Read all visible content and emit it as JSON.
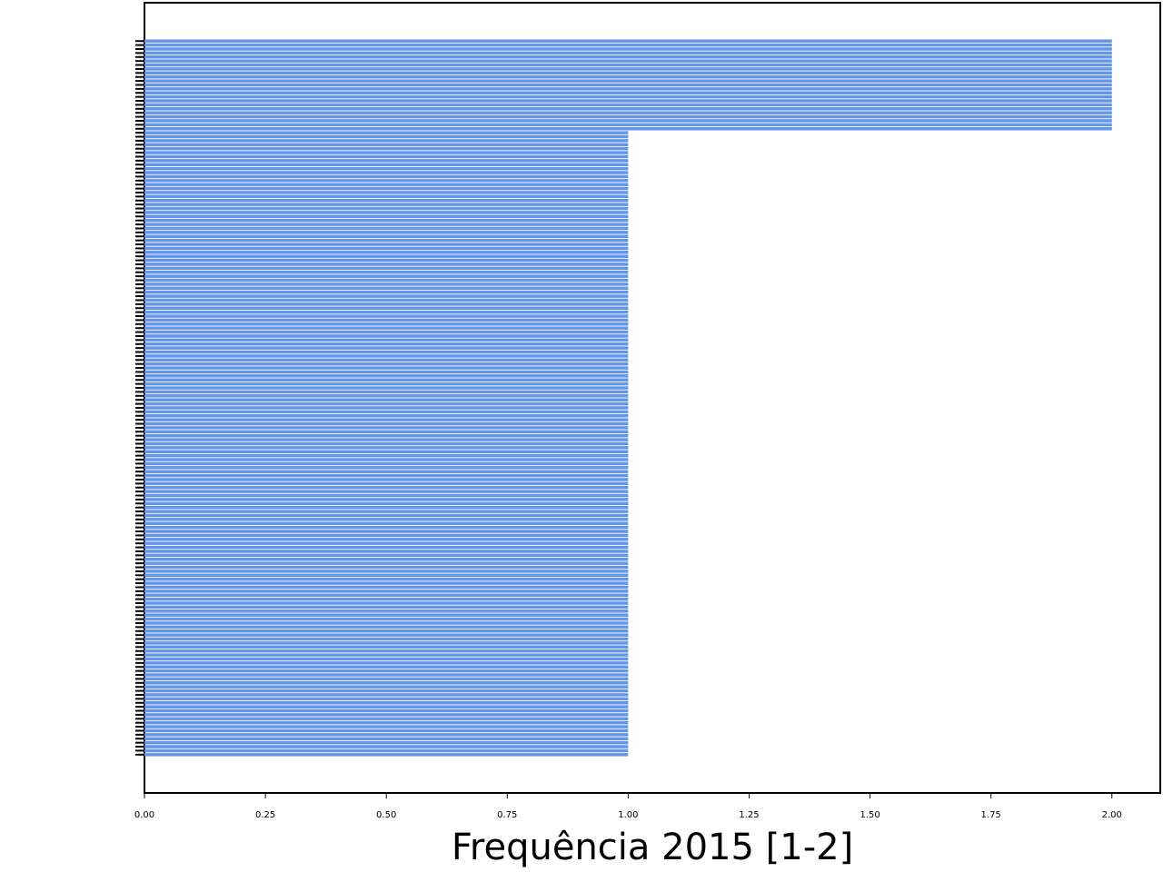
{
  "chart_data": {
    "type": "barh",
    "xlabel": "Frequência 2015 [1-2]",
    "color": "#6495ed",
    "xlim": [
      0,
      2.1
    ],
    "xticks": [
      {
        "value": 0,
        "label": "0.00"
      },
      {
        "value": 0.25,
        "label": "0.25"
      },
      {
        "value": 0.5,
        "label": "0.50"
      },
      {
        "value": 0.75,
        "label": "0.75"
      },
      {
        "value": 1,
        "label": "1.00"
      },
      {
        "value": 1.25,
        "label": "1.25"
      },
      {
        "value": 1.5,
        "label": "1.50"
      },
      {
        "value": 1.75,
        "label": "1.75"
      },
      {
        "value": 2,
        "label": "2.00"
      }
    ],
    "categories": [
      null,
      null,
      null,
      null,
      null,
      null,
      null,
      null,
      null,
      null,
      null,
      null,
      null,
      null,
      null,
      null,
      null,
      null,
      null,
      null,
      null,
      null,
      null,
      null,
      null,
      null,
      null,
      null,
      null,
      null,
      null,
      null,
      null,
      null,
      null,
      null,
      null,
      null,
      null,
      null,
      null,
      null,
      null,
      null,
      null,
      null,
      null,
      null,
      null,
      null,
      null,
      null,
      null,
      null,
      null,
      null,
      null,
      null,
      null,
      null,
      null,
      null,
      null,
      null,
      null,
      null,
      null,
      null,
      null,
      null,
      null,
      null,
      null,
      null,
      null,
      null,
      null,
      null,
      null,
      null,
      null,
      null,
      null,
      null,
      null,
      null,
      null,
      null,
      null,
      null,
      null,
      null,
      null,
      null,
      null,
      null,
      null,
      null,
      null,
      null,
      null,
      null,
      null,
      null,
      null,
      null,
      null,
      null,
      null,
      null,
      null,
      null,
      null,
      null,
      null,
      null,
      null,
      null,
      null,
      null,
      null,
      null,
      null,
      null,
      null,
      null,
      null,
      null,
      null,
      null,
      null,
      null,
      null,
      null,
      null,
      null,
      null,
      null,
      null,
      null,
      null,
      null,
      null,
      null,
      null,
      null,
      null,
      null,
      null,
      null,
      null,
      null,
      null,
      null,
      null,
      null,
      null,
      null,
      null,
      null,
      null,
      null,
      null,
      null,
      null,
      null,
      null,
      null,
      null,
      null,
      null,
      null,
      null,
      null,
      null,
      null,
      null,
      null,
      null,
      null
    ],
    "values": [
      2,
      2,
      2,
      2,
      2,
      2,
      2,
      2,
      2,
      2,
      2,
      2,
      2,
      2,
      2,
      2,
      2,
      2,
      2,
      2,
      2,
      2,
      2,
      1,
      1,
      1,
      1,
      1,
      1,
      1,
      1,
      1,
      1,
      1,
      1,
      1,
      1,
      1,
      1,
      1,
      1,
      1,
      1,
      1,
      1,
      1,
      1,
      1,
      1,
      1,
      1,
      1,
      1,
      1,
      1,
      1,
      1,
      1,
      1,
      1,
      1,
      1,
      1,
      1,
      1,
      1,
      1,
      1,
      1,
      1,
      1,
      1,
      1,
      1,
      1,
      1,
      1,
      1,
      1,
      1,
      1,
      1,
      1,
      1,
      1,
      1,
      1,
      1,
      1,
      1,
      1,
      1,
      1,
      1,
      1,
      1,
      1,
      1,
      1,
      1,
      1,
      1,
      1,
      1,
      1,
      1,
      1,
      1,
      1,
      1,
      1,
      1,
      1,
      1,
      1,
      1,
      1,
      1,
      1,
      1,
      1,
      1,
      1,
      1,
      1,
      1,
      1,
      1,
      1,
      1,
      1,
      1,
      1,
      1,
      1,
      1,
      1,
      1,
      1,
      1,
      1,
      1,
      1,
      1,
      1,
      1,
      1,
      1,
      1,
      1,
      1,
      1,
      1,
      1,
      1,
      1,
      1,
      1,
      1,
      1,
      1,
      1,
      1,
      1,
      1,
      1,
      1,
      1,
      1,
      1,
      1,
      1,
      1,
      1,
      1,
      1,
      1,
      1,
      1,
      1
    ]
  }
}
